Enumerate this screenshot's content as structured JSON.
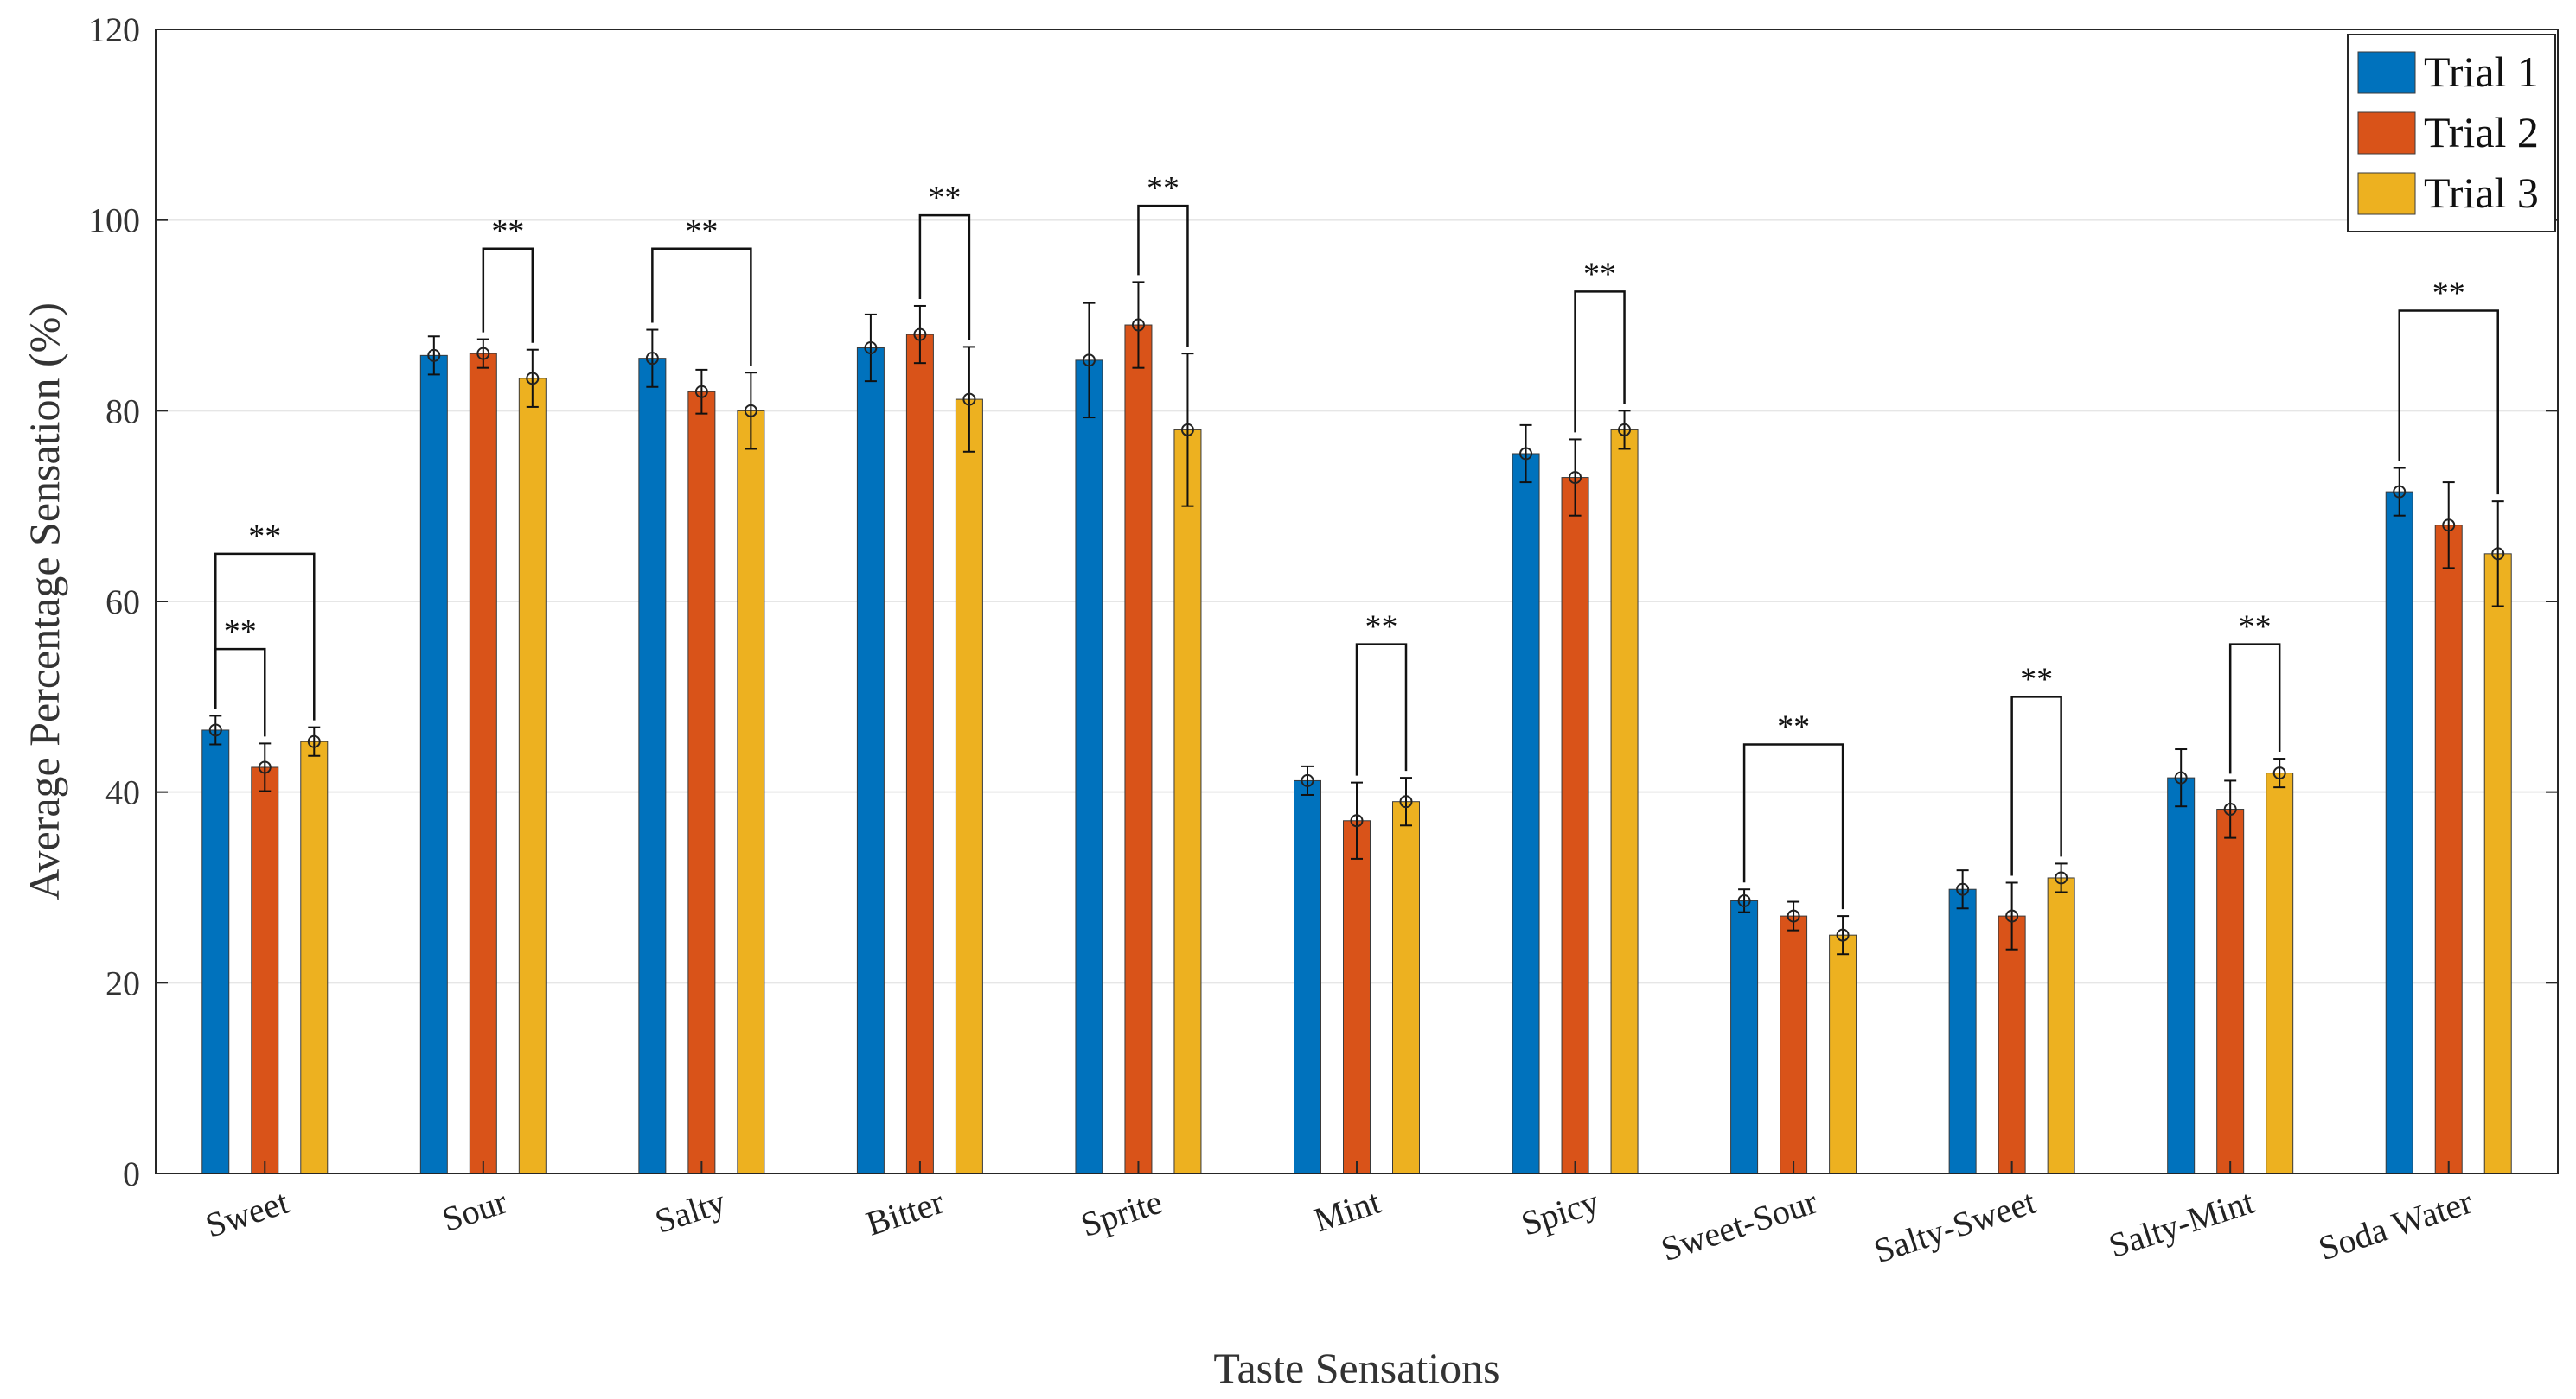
{
  "chart_data": {
    "type": "bar",
    "title": "",
    "xlabel": "Taste Sensations",
    "ylabel": "Average Percentage Sensation (%)",
    "ylim": [
      0,
      120
    ],
    "yticks": [
      0,
      20,
      40,
      60,
      80,
      100,
      120
    ],
    "grid": true,
    "legend_position": "top-right",
    "categories": [
      "Sweet",
      "Sour",
      "Salty",
      "Bitter",
      "Sprite",
      "Mint",
      "Spicy",
      "Sweet-Sour",
      "Salty-Sweet",
      "Salty-Mint",
      "Soda Water"
    ],
    "series": [
      {
        "name": "Trial 1",
        "color": "#0072BD",
        "values": [
          46.5,
          85.8,
          85.5,
          86.6,
          85.3,
          41.2,
          75.5,
          28.6,
          29.8,
          41.5,
          71.5
        ],
        "errors": [
          1.5,
          2.0,
          3.0,
          3.5,
          6.0,
          1.5,
          3.0,
          1.2,
          2.0,
          3.0,
          2.5
        ]
      },
      {
        "name": "Trial 2",
        "color": "#D95319",
        "values": [
          42.6,
          86.0,
          82.0,
          88.0,
          89.0,
          37.0,
          73.0,
          27.0,
          27.0,
          38.2,
          68.0
        ],
        "errors": [
          2.5,
          1.5,
          2.3,
          3.0,
          4.5,
          4.0,
          4.0,
          1.5,
          3.5,
          3.0,
          4.5
        ]
      },
      {
        "name": "Trial 3",
        "color": "#EDB120",
        "values": [
          45.3,
          83.4,
          80.0,
          81.2,
          78.0,
          39.0,
          78.0,
          25.0,
          31.0,
          42.0,
          65.0
        ],
        "errors": [
          1.5,
          3.0,
          4.0,
          5.5,
          8.0,
          2.5,
          2.0,
          2.0,
          1.5,
          1.5,
          5.5
        ]
      }
    ],
    "significance": [
      {
        "category": 0,
        "from": 0,
        "to": 1,
        "y": 55,
        "label": "**"
      },
      {
        "category": 0,
        "from": 0,
        "to": 2,
        "y": 65,
        "label": "**"
      },
      {
        "category": 1,
        "from": 1,
        "to": 2,
        "y": 97,
        "label": "**"
      },
      {
        "category": 2,
        "from": 0,
        "to": 2,
        "y": 97,
        "label": "**"
      },
      {
        "category": 3,
        "from": 1,
        "to": 2,
        "y": 100.5,
        "label": "**"
      },
      {
        "category": 4,
        "from": 1,
        "to": 2,
        "y": 101.5,
        "label": "**"
      },
      {
        "category": 5,
        "from": 1,
        "to": 2,
        "y": 55.5,
        "label": "**"
      },
      {
        "category": 6,
        "from": 1,
        "to": 2,
        "y": 92.5,
        "label": "**"
      },
      {
        "category": 7,
        "from": 0,
        "to": 2,
        "y": 45,
        "label": "**"
      },
      {
        "category": 8,
        "from": 1,
        "to": 2,
        "y": 50,
        "label": "**"
      },
      {
        "category": 9,
        "from": 1,
        "to": 2,
        "y": 55.5,
        "label": "**"
      },
      {
        "category": 10,
        "from": 0,
        "to": 2,
        "y": 90.5,
        "label": "**"
      }
    ]
  }
}
